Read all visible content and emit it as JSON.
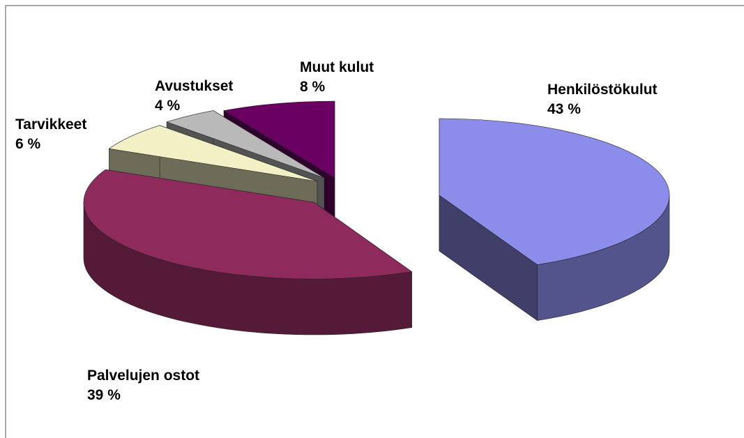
{
  "chart_data": {
    "type": "pie",
    "categories": [
      "Henkilöstökulut",
      "Palvelujen ostot",
      "Tarvikkeet",
      "Avustukset",
      "Muut kulut"
    ],
    "values": [
      43,
      39,
      6,
      4,
      8
    ],
    "value_labels": [
      "43 %",
      "39 %",
      "6 %",
      "4 %",
      "8 %"
    ],
    "colors": [
      "#8c8ceb",
      "#8e2b5c",
      "#f2f0c4",
      "#b9b9b9",
      "#6a0062"
    ]
  }
}
